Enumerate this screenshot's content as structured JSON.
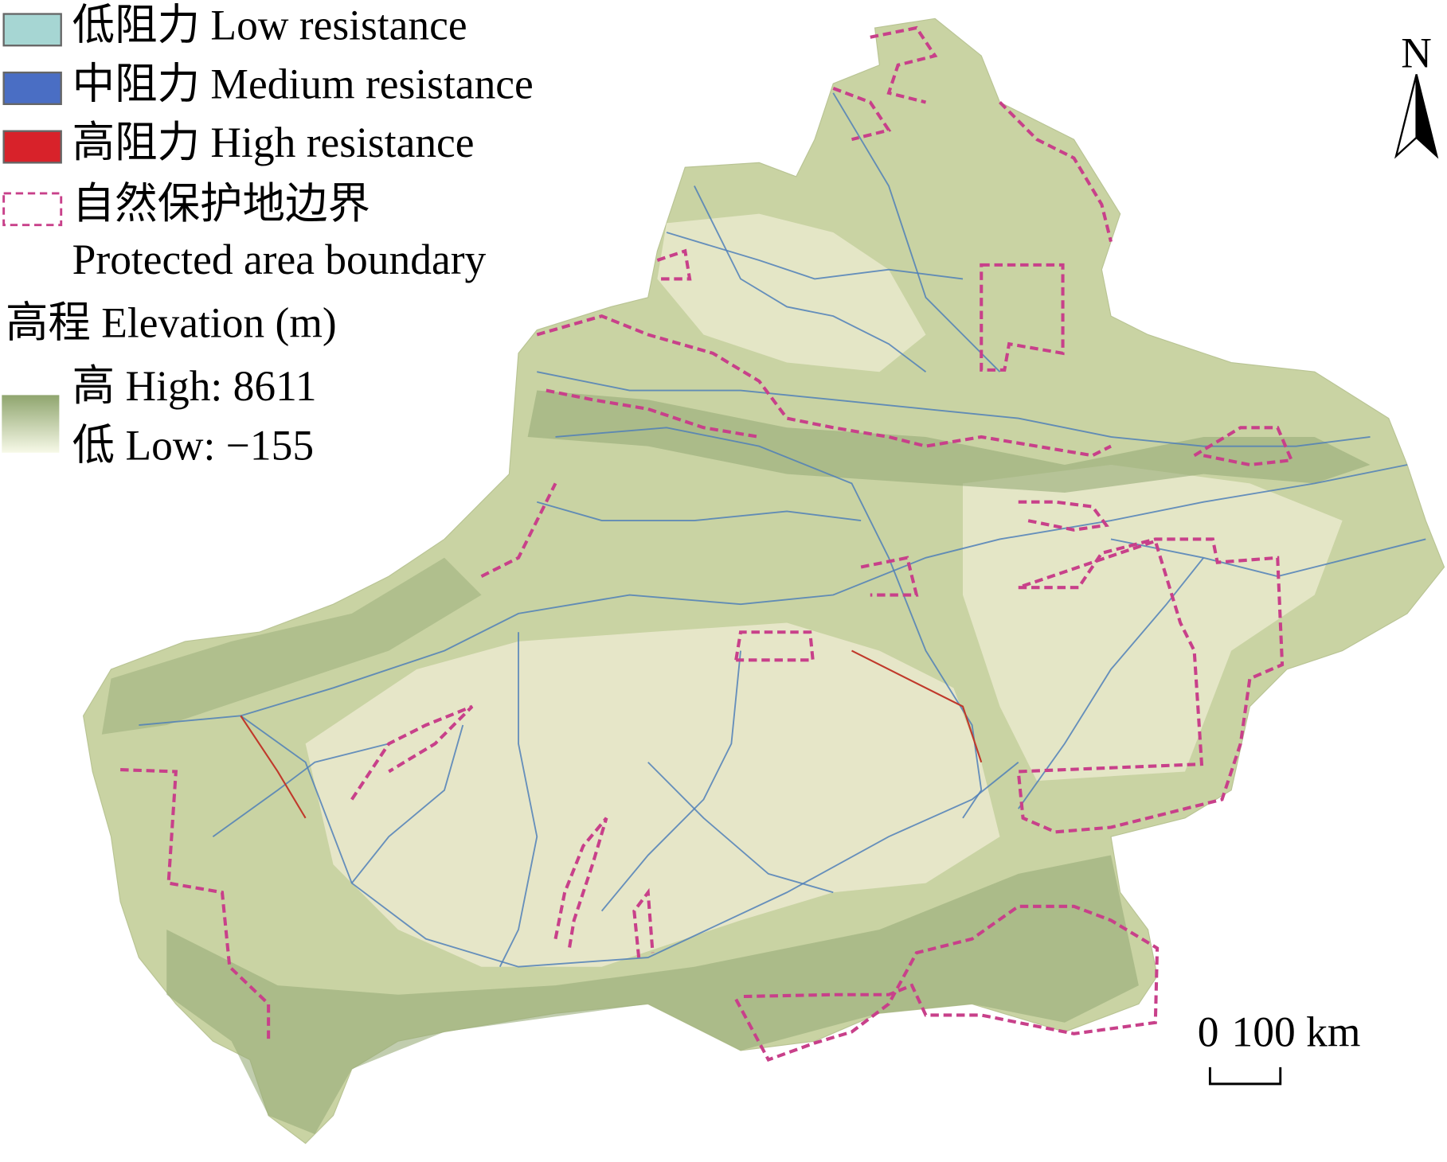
{
  "legend": {
    "items": [
      {
        "label": "低阻力 Low resistance"
      },
      {
        "label": "中阻力 Medium resistance"
      },
      {
        "label": "高阻力 High resistance"
      }
    ],
    "protected_area": {
      "label_cn": "自然保护地边界",
      "label_en": "Protected area boundary"
    }
  },
  "elevation": {
    "title": "高程 Elevation (m)",
    "high": "高 High: 8611",
    "low": "低 Low: −155"
  },
  "north_arrow": {
    "label": "N"
  },
  "scale_bar": {
    "zero": "0",
    "label": "100 km"
  }
}
